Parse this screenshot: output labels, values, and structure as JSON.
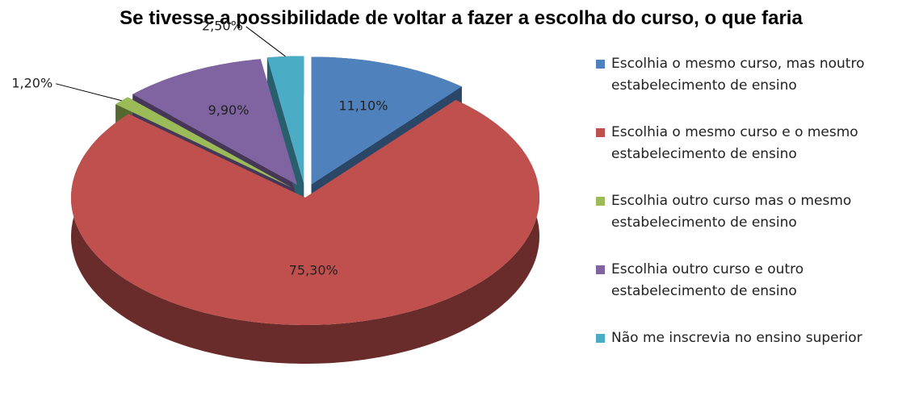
{
  "chart_data": {
    "type": "pie",
    "title": "Se tivesse a possibilidade de voltar a fazer a escolha do curso, o que faria",
    "categories": [
      "Escolhia o mesmo curso, mas noutro estabelecimento de ensino",
      "Escolhia o mesmo curso e o mesmo estabelecimento de ensino",
      "Escolhia outro curso mas o mesmo estabelecimento de ensino",
      "Escolhia outro curso e outro estabelecimento de ensino",
      "Não me inscrevia no ensino superior"
    ],
    "values": [
      11.1,
      75.3,
      1.2,
      9.9,
      2.5
    ],
    "value_labels": [
      "11,10%",
      "75,30%",
      "1,20%",
      "9,90%",
      "2,50%"
    ],
    "colors": [
      "#4f81bd",
      "#c0504d",
      "#9bbb59",
      "#8064a2",
      "#4bacc6"
    ],
    "legend": "right"
  }
}
